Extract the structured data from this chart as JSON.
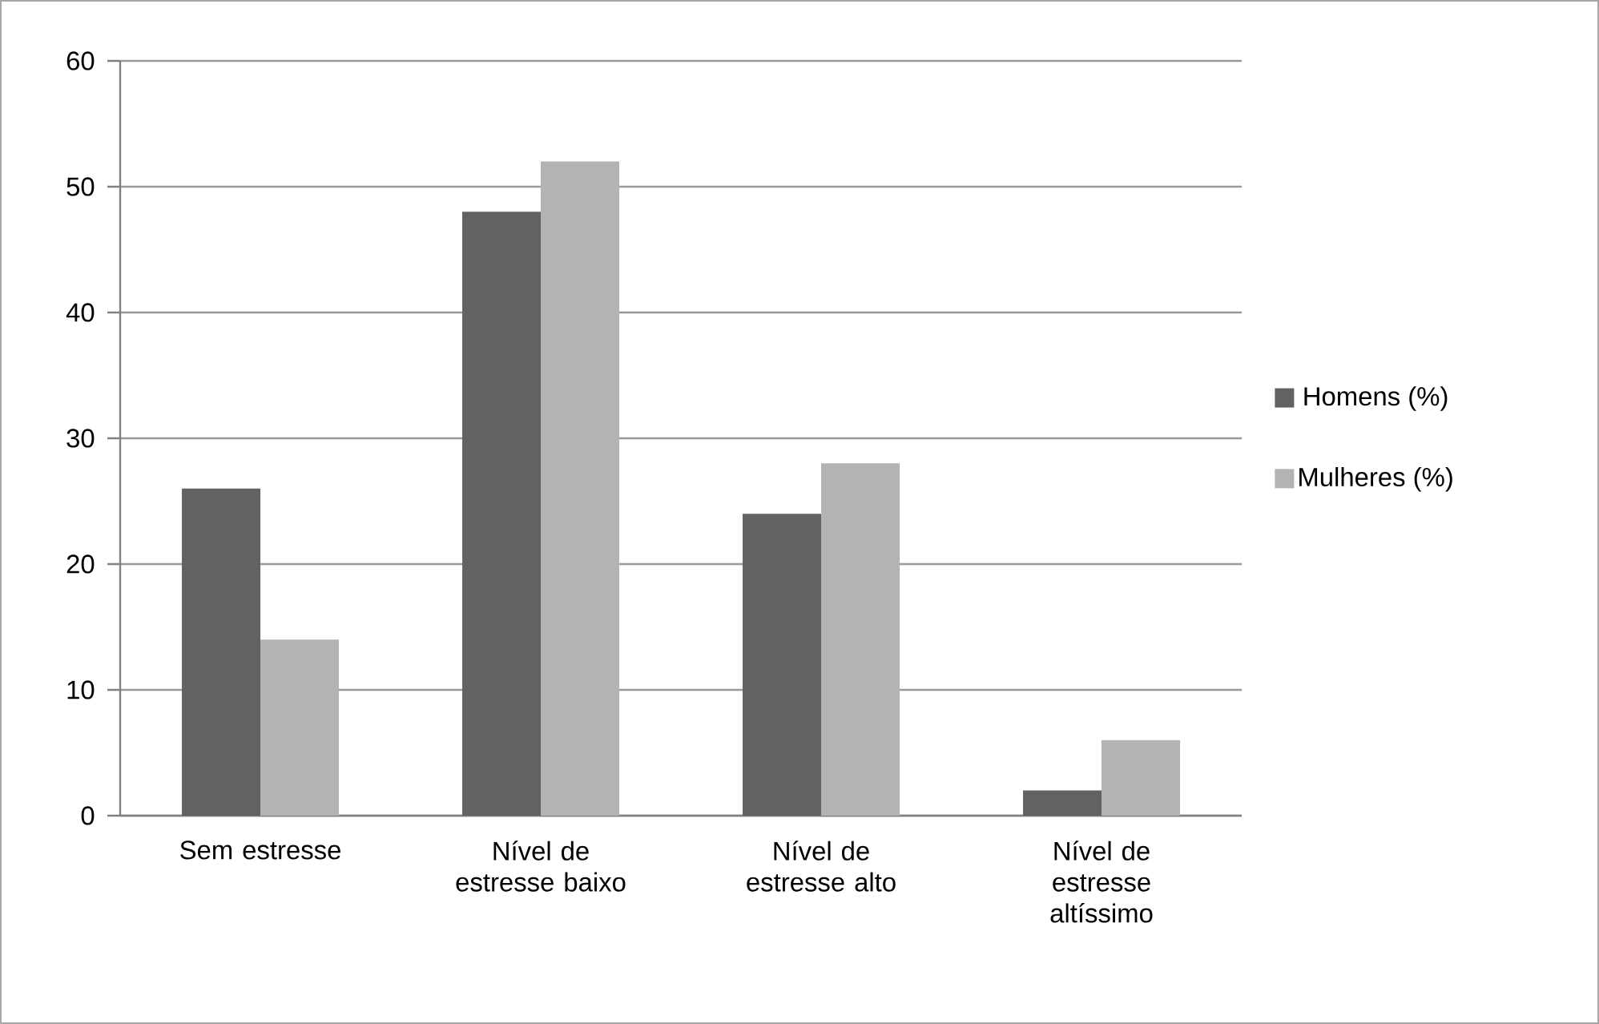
{
  "chart_data": {
    "type": "bar",
    "categories": [
      "Sem estresse",
      "Nível de estresse baixo",
      "Nível de estresse alto",
      "Nível de estresse altíssimo"
    ],
    "series": [
      {
        "name": "Homens (%)",
        "color": "#626262",
        "values": [
          26,
          48,
          24,
          2
        ]
      },
      {
        "name": "Mulheres (%)",
        "color": "#b3b3b3",
        "values": [
          14,
          52,
          28,
          6
        ]
      }
    ],
    "ylim": [
      0,
      60
    ],
    "yticks": [
      0,
      10,
      20,
      30,
      40,
      50,
      60
    ],
    "grid": "y",
    "legend": "right"
  }
}
